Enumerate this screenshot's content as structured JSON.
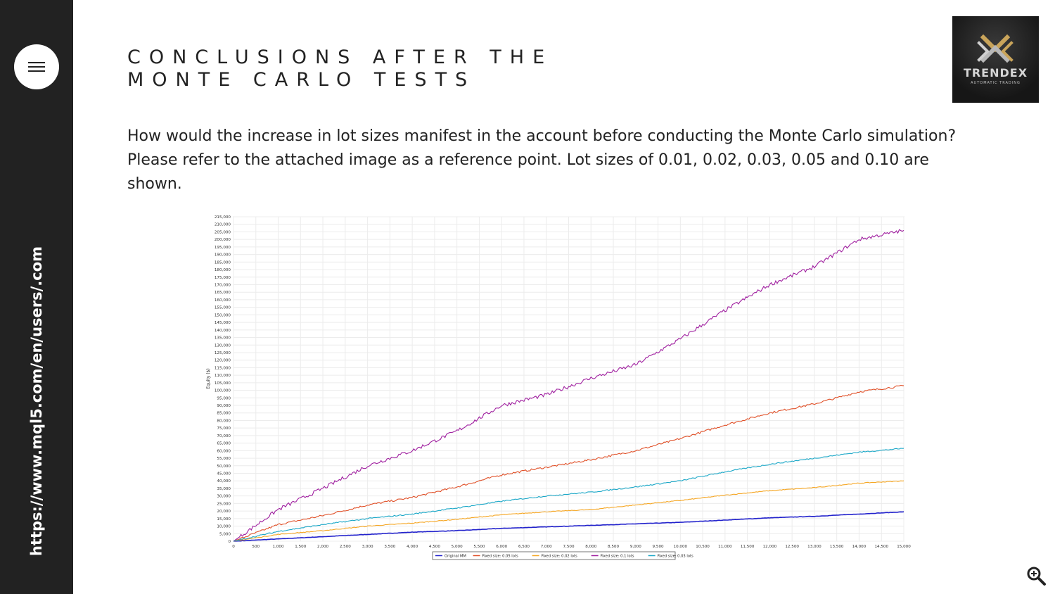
{
  "sidebar": {
    "url": "https://www.mql5.com/en/users/.com"
  },
  "page": {
    "title_line1": "CONCLUSIONS AFTER THE",
    "title_line2": "MONTE CARLO TESTS",
    "paragraph": "How would the increase in lot sizes manifest in the account before conducting the Monte Carlo simulation? Please refer to the attached image as a reference point. Lot sizes of 0.01, 0.02, 0.03, 0.05 and 0.10 are shown."
  },
  "logo": {
    "name": "TRENDEX",
    "subtitle": "AUTOMATIC TRADING"
  },
  "icons": {
    "menu": "hamburger-icon",
    "zoom": "zoom-in-icon"
  },
  "chart_data": {
    "type": "line",
    "title": "",
    "xlabel": "",
    "ylabel": "Equity ($)",
    "xlim": [
      0,
      15000
    ],
    "ylim": [
      0,
      215000
    ],
    "x_ticks": [
      "0",
      "500",
      "1,000",
      "1,500",
      "2,000",
      "2,500",
      "3,000",
      "3,500",
      "4,000",
      "4,500",
      "5,000",
      "5,500",
      "6,000",
      "6,500",
      "7,000",
      "7,500",
      "8,000",
      "8,500",
      "9,000",
      "9,500",
      "10,000",
      "10,500",
      "11,000",
      "11,500",
      "12,000",
      "12,500",
      "13,000",
      "13,500",
      "14,000",
      "14,500",
      "15,000"
    ],
    "y_ticks": [
      "0",
      "5,000",
      "10,000",
      "15,000",
      "20,000",
      "25,000",
      "30,000",
      "35,000",
      "40,000",
      "45,000",
      "50,000",
      "55,000",
      "60,000",
      "65,000",
      "70,000",
      "75,000",
      "80,000",
      "85,000",
      "90,000",
      "95,000",
      "100,000",
      "105,000",
      "110,000",
      "115,000",
      "120,000",
      "125,000",
      "130,000",
      "135,000",
      "140,000",
      "145,000",
      "150,000",
      "155,000",
      "160,000",
      "165,000",
      "170,000",
      "175,000",
      "180,000",
      "185,000",
      "190,000",
      "195,000",
      "200,000",
      "205,000",
      "210,000",
      "215,000"
    ],
    "grid": true,
    "legend_position": "bottom",
    "x": [
      0,
      1000,
      2000,
      3000,
      4000,
      5000,
      6000,
      7000,
      8000,
      9000,
      10000,
      11000,
      12000,
      13000,
      14000,
      15000
    ],
    "series": [
      {
        "name": "Original MM",
        "color": "#2222cc",
        "values": [
          0,
          1500,
          3000,
          4500,
          6000,
          7000,
          8500,
          9500,
          10500,
          11500,
          12500,
          14000,
          15500,
          16500,
          18000,
          19500
        ]
      },
      {
        "name": "Fixed size: 0.05 lots",
        "color": "#e05028",
        "values": [
          0,
          11000,
          17000,
          24000,
          29000,
          36000,
          44000,
          49000,
          54000,
          60000,
          68000,
          77000,
          85000,
          91000,
          99000,
          103000
        ]
      },
      {
        "name": "Fixed size: 0.02 lots",
        "color": "#f5a623",
        "values": [
          0,
          4500,
          7000,
          10000,
          12000,
          14500,
          17500,
          19500,
          21000,
          24000,
          27000,
          30500,
          33500,
          35500,
          38500,
          40000
        ]
      },
      {
        "name": "Fixed size: 0.1 lots",
        "color": "#a020a0",
        "values": [
          0,
          21000,
          35000,
          50000,
          60000,
          73000,
          90000,
          97000,
          108000,
          117000,
          134000,
          153000,
          170000,
          182000,
          200000,
          206000
        ]
      },
      {
        "name": "Fixed size: 0.03 lots",
        "color": "#1aa7c7",
        "values": [
          0,
          6500,
          11000,
          15000,
          18000,
          22000,
          26500,
          30000,
          32500,
          36000,
          40000,
          46000,
          51000,
          55000,
          59000,
          61500
        ]
      }
    ]
  }
}
